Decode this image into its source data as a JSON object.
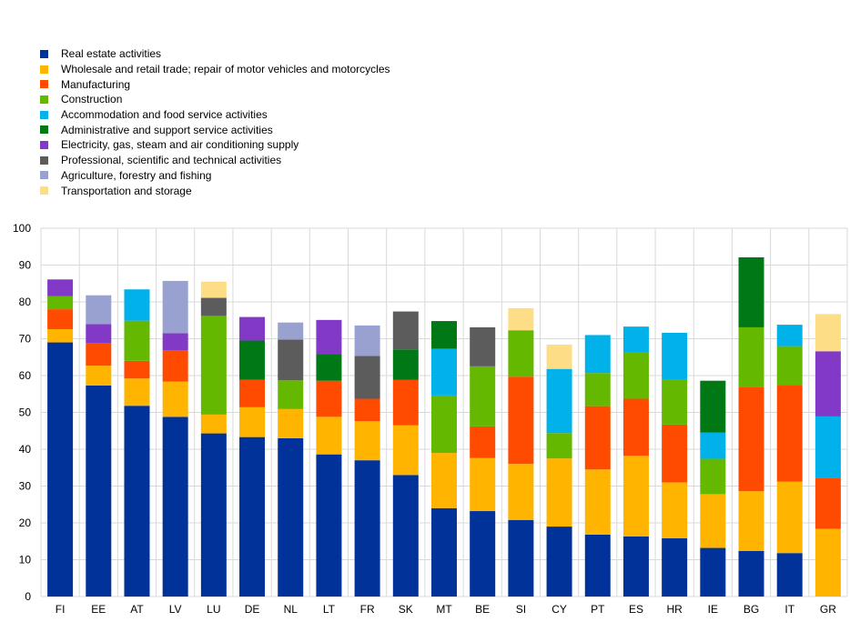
{
  "chart_data": {
    "type": "bar",
    "stacked": true,
    "title": "",
    "xlabel": "",
    "ylabel": "",
    "ylim": [
      0,
      100
    ],
    "yticks": [
      0,
      10,
      20,
      30,
      40,
      50,
      60,
      70,
      80,
      90,
      100
    ],
    "grid": true,
    "legend_position": "top-left",
    "categories": [
      "FI",
      "EE",
      "AT",
      "LV",
      "LU",
      "DE",
      "NL",
      "LT",
      "FR",
      "SK",
      "MT",
      "BE",
      "SI",
      "CY",
      "PT",
      "ES",
      "HR",
      "IE",
      "BG",
      "IT",
      "GR"
    ],
    "series": [
      {
        "name": "Real estate activities",
        "color": "#003299",
        "values": [
          69,
          57.3,
          51.8,
          48.8,
          44.3,
          43.3,
          43,
          38.6,
          37,
          33,
          24,
          23.2,
          20.8,
          19,
          16.8,
          16.3,
          15.8,
          13.2,
          12.4,
          11.8,
          0
        ]
      },
      {
        "name": "Wholesale and retail trade; repair of motor vehicles and motorcycles",
        "color": "#FFB400",
        "values": [
          3.6,
          5.4,
          7.4,
          9.6,
          5.1,
          8.1,
          7.9,
          10.2,
          10.6,
          13.5,
          15,
          14.4,
          15.2,
          18.5,
          17.7,
          21.9,
          15.2,
          14.6,
          16.2,
          19.4,
          18.4
        ]
      },
      {
        "name": "Manufacturing",
        "color": "#FF4B00",
        "values": [
          5.4,
          6.1,
          4.8,
          8.5,
          0,
          7.5,
          0,
          9.8,
          6.1,
          12.3,
          0,
          8.6,
          23.7,
          0,
          17.2,
          15.5,
          15.7,
          0,
          28.2,
          26.3,
          13.8
        ]
      },
      {
        "name": "Construction",
        "color": "#65B800",
        "values": [
          3.6,
          0,
          10.9,
          0,
          26.8,
          0,
          7.8,
          0,
          0,
          0,
          15.6,
          16.3,
          12.6,
          6.9,
          9,
          12.5,
          12.3,
          9.6,
          16.3,
          10.5,
          0
        ]
      },
      {
        "name": "Accommodation and food service activities",
        "color": "#00B1EA",
        "values": [
          0,
          0,
          8.5,
          0,
          0,
          0,
          0,
          0,
          0,
          0,
          12.7,
          0,
          0,
          17.4,
          10.3,
          7.1,
          12.6,
          7.1,
          0,
          5.8,
          16.7
        ]
      },
      {
        "name": "Administrative and support service activities",
        "color": "#007816",
        "values": [
          0,
          0,
          0,
          0,
          0,
          10.6,
          0,
          7.3,
          0,
          8.3,
          7.5,
          0,
          0,
          0,
          0,
          0,
          0,
          14.1,
          19,
          0,
          0
        ]
      },
      {
        "name": "Electricity, gas, steam and air conditioning supply",
        "color": "#8139C6",
        "values": [
          4.5,
          5.2,
          0,
          4.6,
          0,
          6.4,
          0,
          9.2,
          0,
          0,
          0,
          0,
          0,
          0,
          0,
          0,
          0,
          0,
          0,
          0,
          17.7
        ]
      },
      {
        "name": "Professional, scientific and technical activities",
        "color": "#5C5C5C",
        "values": [
          0,
          0,
          0,
          0,
          4.9,
          0,
          11.1,
          0,
          11.6,
          10.3,
          0,
          10.6,
          0,
          0,
          0,
          0,
          0,
          0,
          0,
          0,
          0
        ]
      },
      {
        "name": "Agriculture, forestry and fishing",
        "color": "#98A1D0",
        "values": [
          0,
          7.8,
          0,
          14.2,
          0,
          0,
          4.6,
          0,
          8.3,
          0,
          0,
          0,
          0,
          0,
          0,
          0,
          0,
          0,
          0,
          0,
          0
        ]
      },
      {
        "name": "Transportation and storage",
        "color": "#FDDD86",
        "values": [
          0,
          0,
          0,
          0,
          4.4,
          0,
          0,
          0,
          0,
          0,
          0,
          0,
          6,
          6.6,
          0,
          0,
          0,
          0,
          0,
          0,
          10.1
        ]
      }
    ]
  }
}
